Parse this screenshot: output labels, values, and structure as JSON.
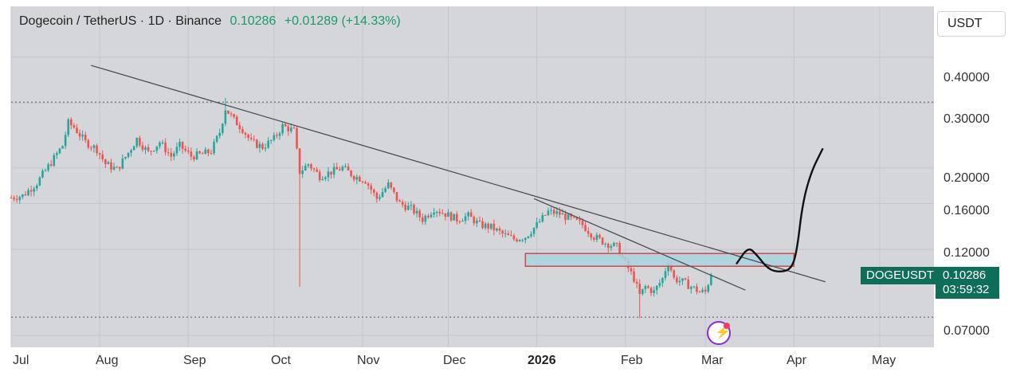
{
  "header": {
    "title": "Dogecoin / TetherUS · 1D · Binance",
    "price": "0.10286",
    "change": "+0.01289 (+14.33%)"
  },
  "quote_currency": "USDT",
  "last_price_tag": {
    "symbol": "DOGEUSDT",
    "price": "0.10286",
    "countdown": "03:59:32"
  },
  "colors": {
    "up": "#26a69a",
    "down": "#ef5350",
    "tag": "#0e6e57",
    "background": "#d4d6da",
    "trendline": "#4a4f56",
    "zone_fill": "#a9d4dd",
    "zone_border": "#d04848"
  },
  "icons": {
    "badge": "lightning-icon"
  },
  "chart_data": {
    "type": "candlestick",
    "scale": "log",
    "x_axis": {
      "ticks": [
        "Jul",
        "Aug",
        "Sep",
        "Oct",
        "Nov",
        "Dec",
        "2026",
        "Feb",
        "Mar",
        "Apr",
        "May"
      ],
      "range": [
        "2025-07-01",
        "2026-05-20"
      ]
    },
    "y_axis": {
      "ticks": [
        "0.40000",
        "0.30000",
        "0.20000",
        "0.16000",
        "0.12000",
        "0.07000"
      ],
      "range": [
        0.065,
        0.55
      ],
      "side": "right"
    },
    "dotted_levels": [
      0.302,
      0.0785
    ],
    "close_series": [
      [
        "2025-07-01",
        0.166
      ],
      [
        "2025-07-05",
        0.168
      ],
      [
        "2025-07-10",
        0.182
      ],
      [
        "2025-07-15",
        0.207
      ],
      [
        "2025-07-19",
        0.23
      ],
      [
        "2025-07-21",
        0.265
      ],
      [
        "2025-07-23",
        0.258
      ],
      [
        "2025-07-27",
        0.235
      ],
      [
        "2025-07-31",
        0.225
      ],
      [
        "2025-08-03",
        0.205
      ],
      [
        "2025-08-07",
        0.198
      ],
      [
        "2025-08-11",
        0.22
      ],
      [
        "2025-08-14",
        0.24
      ],
      [
        "2025-08-18",
        0.22
      ],
      [
        "2025-08-22",
        0.235
      ],
      [
        "2025-08-26",
        0.215
      ],
      [
        "2025-08-29",
        0.23
      ],
      [
        "2025-09-02",
        0.215
      ],
      [
        "2025-09-06",
        0.218
      ],
      [
        "2025-09-09",
        0.222
      ],
      [
        "2025-09-12",
        0.25
      ],
      [
        "2025-09-14",
        0.29
      ],
      [
        "2025-09-17",
        0.27
      ],
      [
        "2025-09-20",
        0.255
      ],
      [
        "2025-09-23",
        0.235
      ],
      [
        "2025-09-27",
        0.228
      ],
      [
        "2025-10-01",
        0.24
      ],
      [
        "2025-10-04",
        0.26
      ],
      [
        "2025-10-08",
        0.252
      ],
      [
        "2025-10-10",
        0.195
      ],
      [
        "2025-10-13",
        0.205
      ],
      [
        "2025-10-17",
        0.19
      ],
      [
        "2025-10-21",
        0.195
      ],
      [
        "2025-10-25",
        0.2
      ],
      [
        "2025-10-29",
        0.19
      ],
      [
        "2025-11-02",
        0.185
      ],
      [
        "2025-11-06",
        0.165
      ],
      [
        "2025-11-10",
        0.18
      ],
      [
        "2025-11-14",
        0.16
      ],
      [
        "2025-11-18",
        0.155
      ],
      [
        "2025-11-22",
        0.145
      ],
      [
        "2025-11-26",
        0.155
      ],
      [
        "2025-11-30",
        0.15
      ],
      [
        "2025-12-04",
        0.145
      ],
      [
        "2025-12-08",
        0.148
      ],
      [
        "2025-12-12",
        0.14
      ],
      [
        "2025-12-16",
        0.138
      ],
      [
        "2025-12-20",
        0.132
      ],
      [
        "2025-12-24",
        0.128
      ],
      [
        "2025-12-28",
        0.13
      ],
      [
        "2026-01-01",
        0.14
      ],
      [
        "2026-01-05",
        0.152
      ],
      [
        "2026-01-09",
        0.15
      ],
      [
        "2026-01-13",
        0.145
      ],
      [
        "2026-01-17",
        0.14
      ],
      [
        "2026-01-21",
        0.13
      ],
      [
        "2026-01-25",
        0.125
      ],
      [
        "2026-01-29",
        0.122
      ],
      [
        "2026-02-01",
        0.11
      ],
      [
        "2026-02-04",
        0.1
      ],
      [
        "2026-02-06",
        0.09
      ],
      [
        "2026-02-08",
        0.095
      ],
      [
        "2026-02-11",
        0.092
      ],
      [
        "2026-02-14",
        0.1
      ],
      [
        "2026-02-16",
        0.112
      ],
      [
        "2026-02-18",
        0.1
      ],
      [
        "2026-02-21",
        0.098
      ],
      [
        "2026-02-24",
        0.095
      ],
      [
        "2026-02-27",
        0.092
      ],
      [
        "2026-03-01",
        0.092
      ],
      [
        "2026-03-03",
        0.1029
      ]
    ],
    "annotations": {
      "trendline_long": [
        [
          "2025-07-29",
          0.38
        ],
        [
          "2026-04-12",
          0.098
        ]
      ],
      "trendline_short": [
        [
          "2025-12-31",
          0.165
        ],
        [
          "2026-03-15",
          0.093
        ]
      ],
      "zone": {
        "from": "2025-12-28",
        "to": "2026-04-01",
        "low": 0.108,
        "high": 0.117
      },
      "projection": [
        [
          "2026-03-12",
          0.11
        ],
        [
          "2026-03-16",
          0.122
        ],
        [
          "2026-03-19",
          0.116
        ],
        [
          "2026-03-23",
          0.106
        ],
        [
          "2026-03-27",
          0.104
        ],
        [
          "2026-03-31",
          0.106
        ],
        [
          "2026-04-02",
          0.118
        ],
        [
          "2026-04-04",
          0.16
        ],
        [
          "2026-04-07",
          0.195
        ],
        [
          "2026-04-11",
          0.225
        ]
      ]
    }
  }
}
